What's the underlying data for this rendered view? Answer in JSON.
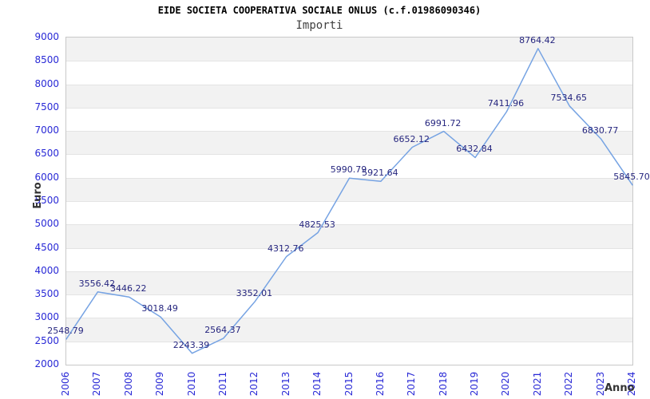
{
  "header": {
    "title": "EIDE SOCIETA COOPERATIVA SOCIALE ONLUS (c.f.01986090346)",
    "subtitle": "Importi"
  },
  "chart_data": {
    "type": "line",
    "title": "EIDE SOCIETA COOPERATIVA SOCIALE ONLUS (c.f.01986090346)",
    "subtitle": "Importi",
    "xlabel": "Anno",
    "ylabel": "Euro",
    "x": [
      2006,
      2007,
      2008,
      2009,
      2010,
      2011,
      2012,
      2013,
      2014,
      2015,
      2016,
      2017,
      2018,
      2019,
      2020,
      2021,
      2022,
      2023,
      2024
    ],
    "values": [
      2548.79,
      3556.42,
      3446.22,
      3018.49,
      2243.39,
      2564.37,
      3352.01,
      4312.76,
      4825.53,
      5990.79,
      5921.64,
      6652.12,
      6991.72,
      6432.84,
      7411.96,
      8764.42,
      7534.65,
      6830.77,
      5845.7
    ],
    "ylim": [
      2000,
      9000
    ],
    "ytick_step": 500,
    "grid": "horizontal-bands-alternating",
    "legend": "none",
    "colors": {
      "line": "#76a3e3",
      "tick_label": "#2929d6",
      "data_label": "#26267f",
      "band": "#f2f2f2",
      "band_alt": "#ffffff",
      "gridline": "#e4e4e4",
      "plot_border": "#c8c8c8",
      "title": "#000000",
      "subtitle": "#404040",
      "axis_title": "#333333"
    }
  }
}
